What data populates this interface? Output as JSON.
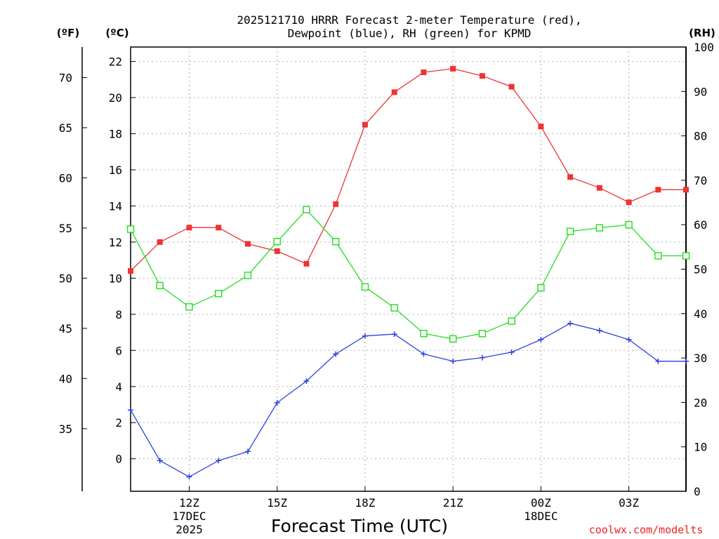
{
  "chart_data": {
    "type": "line",
    "title": "2025121710 HRRR Forecast 2-meter Temperature (red),",
    "subtitle": "Dewpoint (blue), RH (green) for KPMD",
    "xlabel": "Forecast Time (UTC)",
    "credit": "coolwx.com/modelts",
    "left_axis_unit": "(ºF)",
    "center_axis_unit": "(ºC)",
    "right_axis_unit": "(RH)",
    "celsius_ylim": [
      -1.8,
      22.8
    ],
    "celsius_ticks": [
      0,
      2,
      4,
      6,
      8,
      10,
      12,
      14,
      16,
      18,
      20,
      22
    ],
    "fahrenheit_ticks": [
      35,
      40,
      45,
      50,
      55,
      60,
      65,
      70
    ],
    "rh_ylim": [
      0,
      100
    ],
    "rh_ticks": [
      0,
      10,
      20,
      30,
      40,
      50,
      60,
      70,
      80,
      90,
      100
    ],
    "x_hours": [
      9,
      10,
      11,
      12,
      13,
      14,
      15,
      16,
      17,
      18,
      19,
      20,
      21,
      22,
      23,
      24,
      25,
      26,
      27,
      27.95
    ],
    "xlim": [
      9,
      27.95
    ],
    "x_tick_hours": [
      11,
      14,
      17,
      20,
      23,
      26
    ],
    "x_tick_labels": [
      "12Z",
      "15Z",
      "18Z",
      "21Z",
      "00Z",
      "03Z"
    ],
    "date_labels": [
      {
        "hour": 11,
        "lines": [
          "17DEC",
          "2025"
        ]
      },
      {
        "hour": 23,
        "lines": [
          "18DEC"
        ]
      }
    ],
    "series": [
      {
        "name": "Temperature",
        "unit": "C",
        "axis": "celsius",
        "color": "#ee3333",
        "marker": "filled-square",
        "values": [
          10.4,
          12.0,
          12.8,
          12.8,
          11.9,
          11.5,
          10.8,
          14.1,
          18.5,
          20.3,
          21.4,
          21.6,
          21.2,
          20.6,
          18.4,
          15.6,
          15.0,
          14.2,
          14.9,
          14.9
        ]
      },
      {
        "name": "Dewpoint",
        "unit": "C",
        "axis": "celsius",
        "color": "#2a44dd",
        "marker": "plus",
        "values": [
          2.7,
          -0.1,
          -1.0,
          -0.1,
          0.4,
          3.1,
          4.3,
          5.8,
          6.8,
          6.9,
          5.8,
          5.4,
          5.6,
          5.9,
          6.6,
          7.5,
          7.1,
          6.6,
          5.4,
          5.4
        ]
      },
      {
        "name": "RH",
        "unit": "%",
        "axis": "rh",
        "color": "#22dd22",
        "marker": "open-square",
        "values": [
          59,
          46.3,
          41.5,
          44.5,
          48.6,
          56.2,
          63.4,
          56.2,
          46,
          41.3,
          35.5,
          34.3,
          35.5,
          38.3,
          45.8,
          58.5,
          59.3,
          60,
          53,
          53
        ]
      }
    ]
  }
}
